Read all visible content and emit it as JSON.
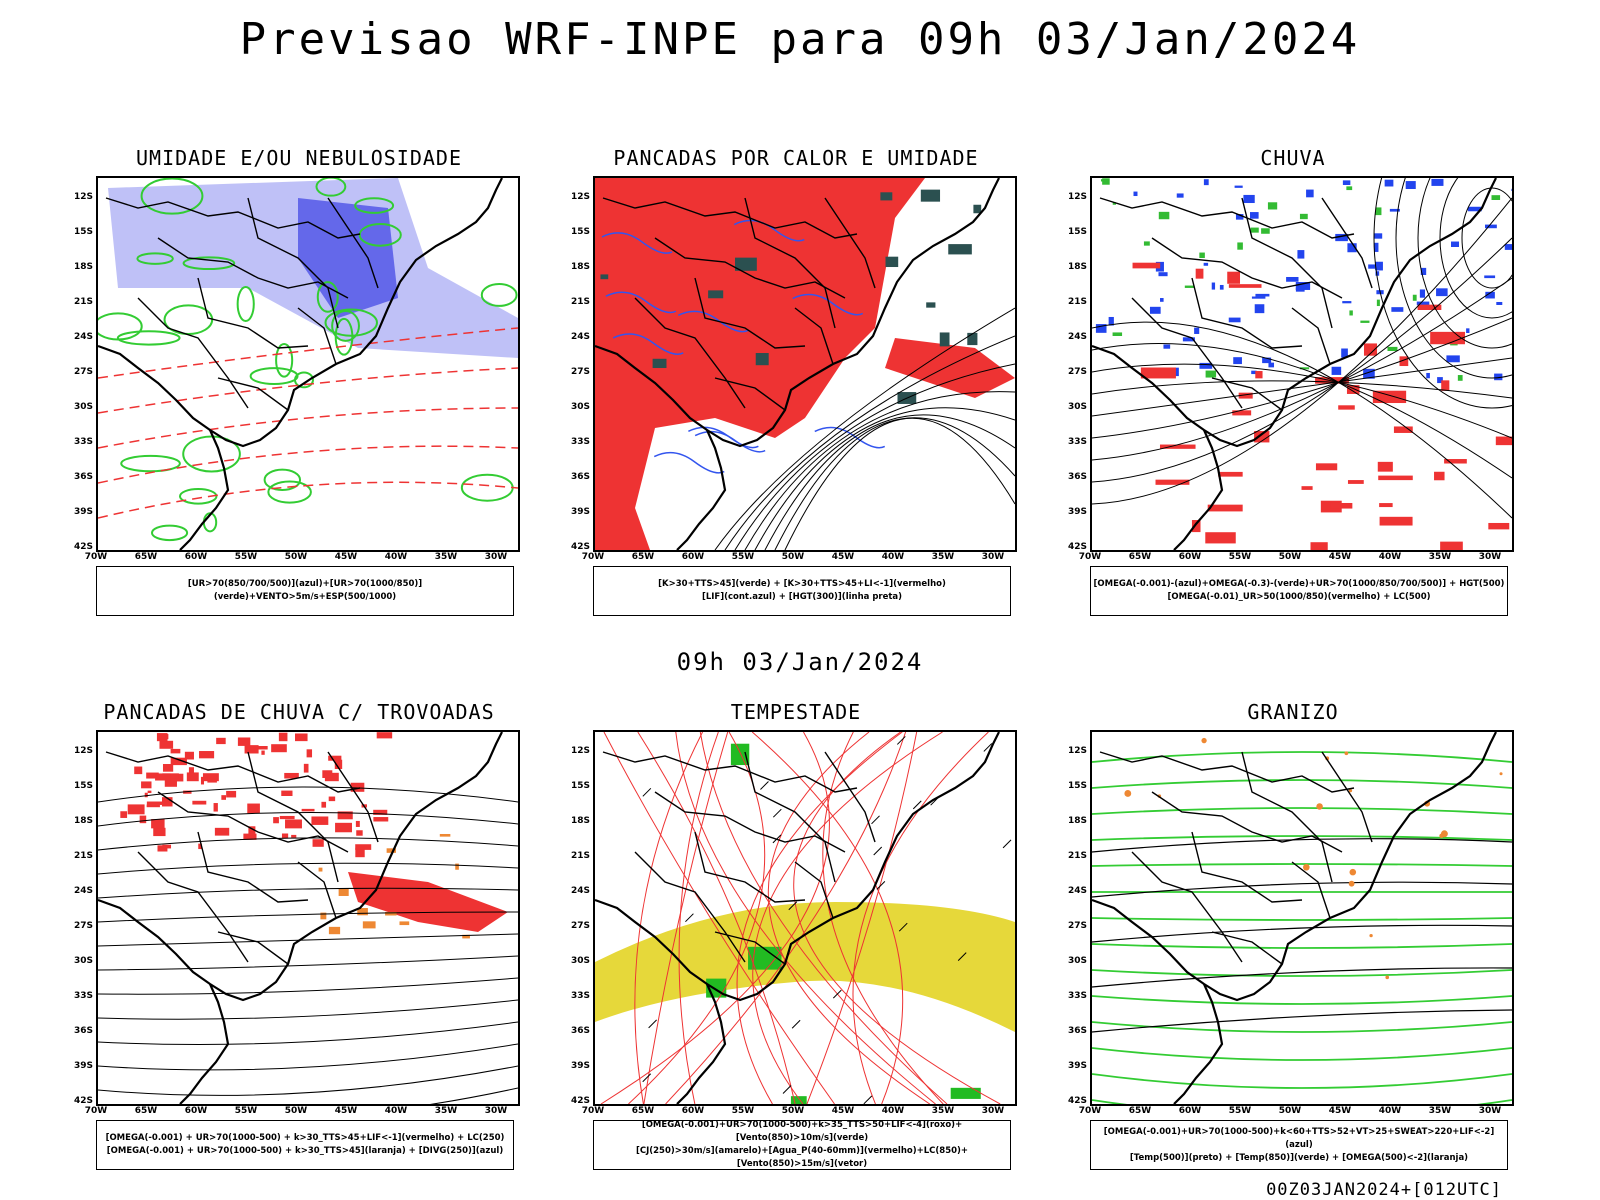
{
  "header": {
    "title": "Previsao WRF-INPE  para 09h 03/Jan/2024",
    "subtitle": "09h 03/Jan/2024",
    "footer": "00Z03JAN2024+[012UTC]"
  },
  "axes": {
    "lat_labels": [
      "12S",
      "15S",
      "18S",
      "21S",
      "24S",
      "27S",
      "30S",
      "33S",
      "36S",
      "39S",
      "42S"
    ],
    "lon_labels": [
      "70W",
      "65W",
      "60W",
      "55W",
      "50W",
      "45W",
      "40W",
      "35W",
      "30W"
    ]
  },
  "panels": [
    {
      "title": "UMIDADE E/OU NEBULOSIDADE",
      "legend": [
        "[UR>70(850/700/500)](azul)+[UR>70(1000/850)](verde)+VENTO>5m/s+ESP(500/1000)"
      ],
      "colors": [
        "#8a8ef0",
        "#33cc33",
        "#ee3333"
      ]
    },
    {
      "title": "PANCADAS POR CALOR E UMIDADE",
      "legend": [
        "[K>30+TTS>45](verde) + [K>30+TTS>45+LI<-1](vermelho)",
        "[LIF](cont.azul) + [HGT(300)](linha preta)"
      ],
      "colors": [
        "#ee3333",
        "#2b5050",
        "#3355ee"
      ]
    },
    {
      "title": "CHUVA",
      "legend": [
        "[OMEGA(-0.001)-(azul)+OMEGA(-0.3)-(verde)+UR>70(1000/850/700/500)] + HGT(500)",
        "[OMEGA(-0.01)_UR>50(1000/850)(vermelho) + LC(500)"
      ],
      "colors": [
        "#2244ee",
        "#33bb33",
        "#ee3333"
      ]
    },
    {
      "title": "PANCADAS DE CHUVA C/ TROVOADAS",
      "legend": [
        "[OMEGA(-0.001) + UR>70(1000-500) + k>30_TTS>45+LIF<-1](vermelho) + LC(250)",
        "[OMEGA(-0.001) + UR>70(1000-500) + k>30_TTS>45](laranja) + [DIVG(250)](azul)"
      ],
      "colors": [
        "#ee3333",
        "#ee8833",
        "#2244ee"
      ]
    },
    {
      "title": "TEMPESTADE",
      "legend": [
        "[OMEGA(-0.001)+UR>70(1000-500)+k>35_TTS>50+LIF<-4](roxo)+[Vento(850)>10m/s](verde)",
        "[CJ(250)>30m/s](amarelo)+[Agua_P(40-60mm)](vermelho)+LC(850)+[Vento(850)>15m/s](vetor)"
      ],
      "colors": [
        "#e6d83a",
        "#ee3333",
        "#22bb22"
      ]
    },
    {
      "title": "GRANIZO",
      "legend": [
        "[OMEGA(-0.001)+UR>70(1000-500)+k<60+TTS>52+VT>25+SWEAT>220+LIF<-2](azul)",
        "[Temp(500)](preto) + [Temp(850)](verde) + [OMEGA(500)<-2](laranja)"
      ],
      "colors": [
        "#33cc33",
        "#ee8833",
        "#000000"
      ]
    }
  ]
}
